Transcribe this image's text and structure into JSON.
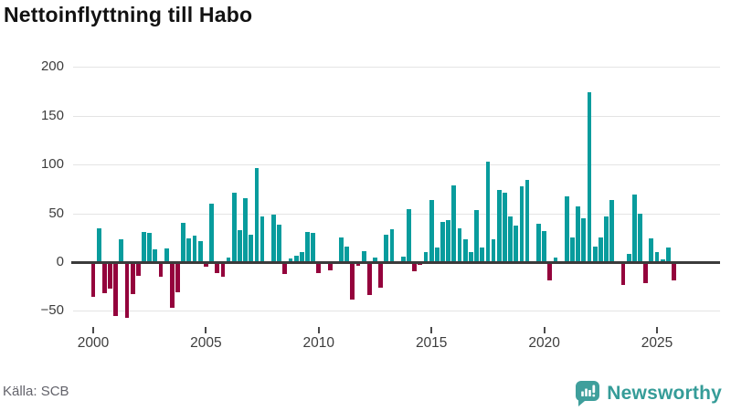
{
  "title": "Nettoinflyttning till Habo",
  "footer": {
    "source": "Källa: SCB",
    "brand": "Newsworthy"
  },
  "colors": {
    "positive": "#089c9d",
    "negative": "#94033c",
    "grid": "#e4e4e4",
    "zero_line": "#3b3b3b",
    "axis_text": "#3d3d3d",
    "title_text": "#121212",
    "source_text": "#63636b",
    "brand": "#359c98"
  },
  "chart_data": {
    "type": "bar",
    "title": "Nettoinflyttning till Habo",
    "xlabel": "",
    "ylabel": "",
    "x_unit": "quarter",
    "x_start": "2000-Q1",
    "x_end": "2025-Q4",
    "grid": true,
    "legend": false,
    "y_ticks": [
      200,
      150,
      100,
      50,
      0,
      -50
    ],
    "ylim": [
      -62,
      212
    ],
    "x_tick_labels": [
      "2000",
      "2005",
      "2010",
      "2015",
      "2020",
      "2025"
    ],
    "x_tick_indices": [
      0,
      20,
      40,
      60,
      80,
      100
    ],
    "values": [
      -36,
      35,
      -32,
      -27,
      -55,
      23,
      -57,
      -33,
      -14,
      31,
      30,
      13,
      -15,
      14,
      -47,
      -31,
      40,
      24,
      27,
      22,
      -5,
      60,
      -11,
      -15,
      5,
      71,
      33,
      66,
      28,
      96,
      47,
      0,
      49,
      38,
      -12,
      4,
      7,
      10,
      31,
      30,
      -11,
      0,
      -8,
      0,
      25,
      16,
      -38,
      -4,
      11,
      -34,
      5,
      -26,
      28,
      34,
      0,
      6,
      54,
      -9,
      -3,
      10,
      64,
      15,
      41,
      43,
      79,
      35,
      23,
      10,
      53,
      15,
      103,
      23,
      74,
      71,
      47,
      37,
      78,
      84,
      0,
      39,
      32,
      -19,
      5,
      0,
      67,
      25,
      57,
      45,
      174,
      16,
      25,
      47,
      64,
      0,
      -23,
      8,
      69,
      50,
      -22,
      24,
      10,
      3,
      15,
      -19
    ]
  }
}
